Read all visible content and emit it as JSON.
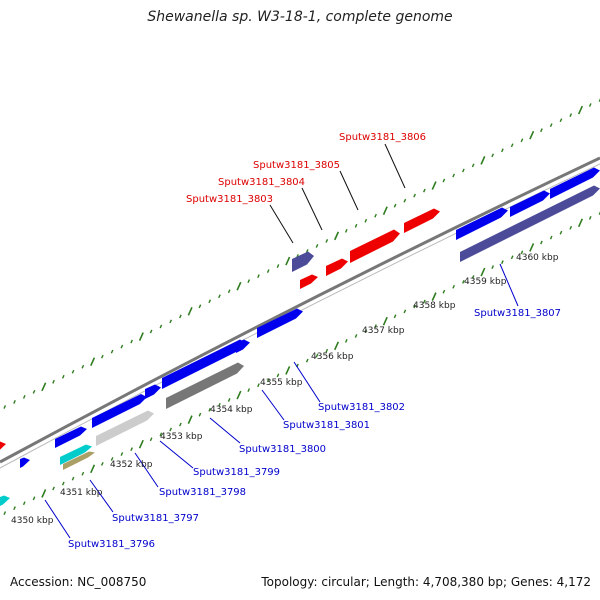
{
  "title": "Shewanella sp. W3-18-1, complete genome",
  "accession": "Accession: NC_008750",
  "summary": "Topology: circular; Length: 4,708,380 bp; Genes: 4,172",
  "colors": {
    "forward_cds": "#0000ee",
    "reverse_cds": "#ee0000",
    "other_cds": "#4b4b99",
    "pseudo": "#777777",
    "rna": "#00cccc",
    "misc": "#aaa066",
    "tick": "#2e7d1e",
    "backbone": "#777777",
    "label_forward": "#0000cc",
    "label_reverse": "#dd0000"
  },
  "kbp_labels": [
    "4350 kbp",
    "4351 kbp",
    "4352 kbp",
    "4353 kbp",
    "4354 kbp",
    "4355 kbp",
    "4356 kbp",
    "4357 kbp",
    "4358 kbp",
    "4359 kbp",
    "4360 kbp"
  ],
  "gene_labels_top": [
    "Sputw3181_3803",
    "Sputw3181_3804",
    "Sputw3181_3805",
    "Sputw3181_3806"
  ],
  "gene_labels_bottom": [
    "Sputw3181_3796",
    "Sputw3181_3797",
    "Sputw3181_3798",
    "Sputw3181_3799",
    "Sputw3181_3800",
    "Sputw3181_3801",
    "Sputw3181_3802",
    "Sputw3181_3807"
  ]
}
